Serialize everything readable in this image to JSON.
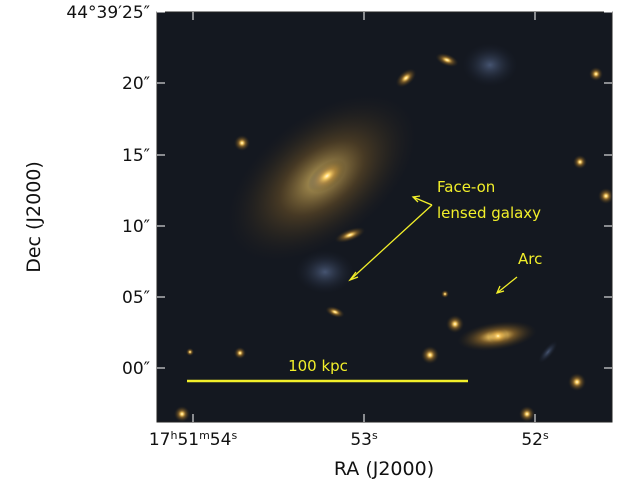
{
  "axes": {
    "x_label": "RA (J2000)",
    "y_label": "Dec (J2000)",
    "x_ticks": [
      [
        "17",
        "h",
        "51",
        "m",
        "54",
        "s"
      ],
      [
        "53",
        "s"
      ],
      [
        "52",
        "s"
      ]
    ],
    "y_ticks": [
      "44°39′25″",
      "20″",
      "15″",
      "10″",
      "05″",
      "00″"
    ]
  },
  "annotations": {
    "lensed": [
      "Face-on",
      "lensed galaxy"
    ],
    "arc": "Arc",
    "scale_bar": "100 kpc"
  }
}
